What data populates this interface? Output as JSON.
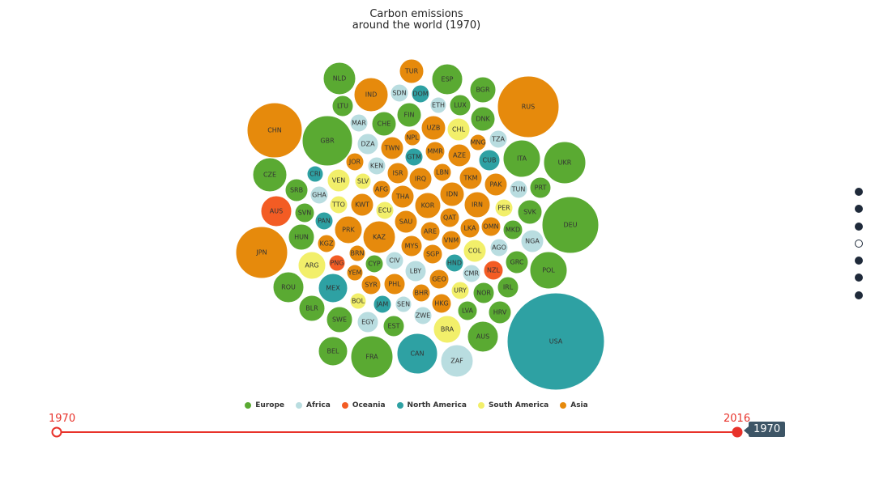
{
  "chart_data": {
    "type": "bubble",
    "title_line1": "Carbon emissions",
    "title_line2": "around the world (1970)",
    "colors": {
      "Europe": "#5aaa32",
      "Africa": "#b9dde0",
      "Oceania": "#f35c24",
      "North America": "#2ea1a3",
      "South America": "#f2ef6a",
      "Asia": "#e68a0c"
    },
    "legend": [
      "Europe",
      "Africa",
      "Oceania",
      "North America",
      "South America",
      "Asia"
    ],
    "bubbles": [
      {
        "code": "NLD",
        "region": "Europe",
        "c": [
          419,
          97
        ],
        "r": 20
      },
      {
        "code": "TUR",
        "region": "Asia",
        "c": [
          508,
          88
        ],
        "r": 15
      },
      {
        "code": "ESP",
        "region": "Europe",
        "c": [
          552,
          98
        ],
        "r": 19
      },
      {
        "code": "BGR",
        "region": "Europe",
        "c": [
          596,
          111
        ],
        "r": 16
      },
      {
        "code": "RUS",
        "region": "Asia",
        "c": [
          652,
          132
        ],
        "r": 38
      },
      {
        "code": "IND",
        "region": "Asia",
        "c": [
          458,
          117
        ],
        "r": 21
      },
      {
        "code": "SDN",
        "region": "Africa",
        "c": [
          493,
          115
        ],
        "r": 11
      },
      {
        "code": "DOM",
        "region": "North America",
        "c": [
          519,
          116
        ],
        "r": 11
      },
      {
        "code": "ETH",
        "region": "Africa",
        "c": [
          541,
          130
        ],
        "r": 10
      },
      {
        "code": "LUX",
        "region": "Europe",
        "c": [
          568,
          130
        ],
        "r": 13
      },
      {
        "code": "LTU",
        "region": "Europe",
        "c": [
          423,
          131
        ],
        "r": 13
      },
      {
        "code": "FIN",
        "region": "Europe",
        "c": [
          505,
          142
        ],
        "r": 15
      },
      {
        "code": "DNK",
        "region": "Europe",
        "c": [
          596,
          147
        ],
        "r": 15
      },
      {
        "code": "CHN",
        "region": "Asia",
        "c": [
          339,
          161
        ],
        "r": 34
      },
      {
        "code": "MAR",
        "region": "Africa",
        "c": [
          443,
          152
        ],
        "r": 11
      },
      {
        "code": "CHE",
        "region": "Europe",
        "c": [
          474,
          153
        ],
        "r": 15
      },
      {
        "code": "UZB",
        "region": "Asia",
        "c": [
          535,
          158
        ],
        "r": 15
      },
      {
        "code": "CHL",
        "region": "South America",
        "c": [
          566,
          160
        ],
        "r": 14
      },
      {
        "code": "GBR",
        "region": "Europe",
        "c": [
          404,
          174
        ],
        "r": 31
      },
      {
        "code": "NPL",
        "region": "Asia",
        "c": [
          509,
          170
        ],
        "r": 10
      },
      {
        "code": "MNG",
        "region": "Asia",
        "c": [
          590,
          176
        ],
        "r": 10
      },
      {
        "code": "TZA",
        "region": "Africa",
        "c": [
          615,
          172
        ],
        "r": 11
      },
      {
        "code": "DZA",
        "region": "Africa",
        "c": [
          454,
          178
        ],
        "r": 13
      },
      {
        "code": "TWN",
        "region": "Asia",
        "c": [
          484,
          183
        ],
        "r": 14
      },
      {
        "code": "MMR",
        "region": "Asia",
        "c": [
          537,
          187
        ],
        "r": 12
      },
      {
        "code": "AZE",
        "region": "Asia",
        "c": [
          567,
          192
        ],
        "r": 14
      },
      {
        "code": "ITA",
        "region": "Europe",
        "c": [
          644,
          196
        ],
        "r": 23
      },
      {
        "code": "UKR",
        "region": "Europe",
        "c": [
          697,
          201
        ],
        "r": 26
      },
      {
        "code": "GTM",
        "region": "North America",
        "c": [
          511,
          194
        ],
        "r": 11
      },
      {
        "code": "CUB",
        "region": "North America",
        "c": [
          604,
          198
        ],
        "r": 13
      },
      {
        "code": "JOR",
        "region": "Asia",
        "c": [
          438,
          200
        ],
        "r": 11
      },
      {
        "code": "KEN",
        "region": "Africa",
        "c": [
          465,
          205
        ],
        "r": 11
      },
      {
        "code": "CZE",
        "region": "Europe",
        "c": [
          333,
          216
        ],
        "r": 21
      },
      {
        "code": "CRI",
        "region": "North America",
        "c": [
          389,
          215
        ],
        "r": 10
      },
      {
        "code": "ISR",
        "region": "Asia",
        "c": [
          491,
          214
        ],
        "r": 13
      },
      {
        "code": "LBN",
        "region": "Asia",
        "c": [
          546,
          213
        ],
        "r": 11
      },
      {
        "code": "VEN",
        "region": "South America",
        "c": [
          418,
          223
        ],
        "r": 14
      },
      {
        "code": "SLV",
        "region": "South America",
        "c": [
          448,
          224
        ],
        "r": 10
      },
      {
        "code": "IRQ",
        "region": "Asia",
        "c": [
          519,
          221
        ],
        "r": 14
      },
      {
        "code": "TKM",
        "region": "Asia",
        "c": [
          581,
          220
        ],
        "r": 14
      },
      {
        "code": "PAK",
        "region": "Asia",
        "c": [
          612,
          228
        ],
        "r": 14
      },
      {
        "code": "SRB",
        "region": "Europe",
        "c": [
          366,
          235
        ],
        "r": 14
      },
      {
        "code": "AFG",
        "region": "Asia",
        "c": [
          471,
          234
        ],
        "r": 11
      },
      {
        "code": "TUN",
        "region": "Africa",
        "c": [
          640,
          234
        ],
        "r": 11
      },
      {
        "code": "PRT",
        "region": "Europe",
        "c": [
          667,
          232
        ],
        "r": 13
      },
      {
        "code": "GHA",
        "region": "Africa",
        "c": [
          394,
          241
        ],
        "r": 11
      },
      {
        "code": "THA",
        "region": "Asia",
        "c": [
          497,
          243
        ],
        "r": 14
      },
      {
        "code": "IDN",
        "region": "Asia",
        "c": [
          558,
          240
        ],
        "r": 15
      },
      {
        "code": "AUS",
        "region": "Oceania",
        "c": [
          341,
          261
        ],
        "r": 19
      },
      {
        "code": "TTO",
        "region": "South America",
        "c": [
          418,
          253
        ],
        "r": 11
      },
      {
        "code": "KWT",
        "region": "Asia",
        "c": [
          447,
          253
        ],
        "r": 14
      },
      {
        "code": "KOR",
        "region": "Asia",
        "c": [
          528,
          254
        ],
        "r": 16
      },
      {
        "code": "IRN",
        "region": "Asia",
        "c": [
          589,
          253
        ],
        "r": 16
      },
      {
        "code": "ECU",
        "region": "South America",
        "c": [
          475,
          260
        ],
        "r": 11
      },
      {
        "code": "PER",
        "region": "South America",
        "c": [
          622,
          257
        ],
        "r": 11
      },
      {
        "code": "SVK",
        "region": "Europe",
        "c": [
          654,
          262
        ],
        "r": 15
      },
      {
        "code": "DEU",
        "region": "Europe",
        "c": [
          704,
          278
        ],
        "r": 35
      },
      {
        "code": "SVN",
        "region": "Europe",
        "c": [
          376,
          263
        ],
        "r": 12
      },
      {
        "code": "QAT",
        "region": "Asia",
        "c": [
          555,
          269
        ],
        "r": 12
      },
      {
        "code": "PAN",
        "region": "North America",
        "c": [
          400,
          273
        ],
        "r": 11
      },
      {
        "code": "SAU",
        "region": "Asia",
        "c": [
          501,
          274
        ],
        "r": 14
      },
      {
        "code": "LKA",
        "region": "Asia",
        "c": [
          580,
          282
        ],
        "r": 12
      },
      {
        "code": "OMN",
        "region": "Asia",
        "c": [
          606,
          280
        ],
        "r": 12
      },
      {
        "code": "PRK",
        "region": "Asia",
        "c": [
          430,
          284
        ],
        "r": 17
      },
      {
        "code": "ARE",
        "region": "Asia",
        "c": [
          531,
          286
        ],
        "r": 12
      },
      {
        "code": "KAZ",
        "region": "Asia",
        "c": [
          468,
          293
        ],
        "r": 20
      },
      {
        "code": "MKD",
        "region": "Europe",
        "c": [
          633,
          284
        ],
        "r": 12
      },
      {
        "code": "HUN",
        "region": "Europe",
        "c": [
          372,
          293
        ],
        "r": 16
      },
      {
        "code": "NGA",
        "region": "Africa",
        "c": [
          657,
          298
        ],
        "r": 14
      },
      {
        "code": "VNM",
        "region": "Asia",
        "c": [
          557,
          297
        ],
        "r": 12
      },
      {
        "code": "KGZ",
        "region": "Asia",
        "c": [
          403,
          301
        ],
        "r": 11
      },
      {
        "code": "MYS",
        "region": "Asia",
        "c": [
          508,
          304
        ],
        "r": 13
      },
      {
        "code": "AGO",
        "region": "Africa",
        "c": [
          616,
          306
        ],
        "r": 11
      },
      {
        "code": "JPN",
        "region": "Asia",
        "c": [
          323,
          312
        ],
        "r": 32
      },
      {
        "code": "COL",
        "region": "South America",
        "c": [
          586,
          310
        ],
        "r": 14
      },
      {
        "code": "BRN",
        "region": "Asia",
        "c": [
          441,
          313
        ],
        "r": 10
      },
      {
        "code": "SGP",
        "region": "Asia",
        "c": [
          534,
          314
        ],
        "r": 12
      },
      {
        "code": "GRC",
        "region": "Europe",
        "c": [
          638,
          324
        ],
        "r": 14
      },
      {
        "code": "ARG",
        "region": "South America",
        "c": [
          385,
          328
        ],
        "r": 17
      },
      {
        "code": "PNG",
        "region": "Oceania",
        "c": [
          416,
          325
        ],
        "r": 10
      },
      {
        "code": "CYP",
        "region": "Europe",
        "c": [
          462,
          326
        ],
        "r": 11
      },
      {
        "code": "CIV",
        "region": "Africa",
        "c": [
          487,
          322
        ],
        "r": 11
      },
      {
        "code": "HND",
        "region": "North America",
        "c": [
          561,
          325
        ],
        "r": 11
      },
      {
        "code": "POL",
        "region": "Europe",
        "c": [
          677,
          334
        ],
        "r": 23
      },
      {
        "code": "NZL",
        "region": "Oceania",
        "c": [
          609,
          334
        ],
        "r": 12
      },
      {
        "code": "YEM",
        "region": "Asia",
        "c": [
          438,
          337
        ],
        "r": 10
      },
      {
        "code": "LBY",
        "region": "Africa",
        "c": [
          513,
          335
        ],
        "r": 13
      },
      {
        "code": "CMR",
        "region": "Africa",
        "c": [
          582,
          338
        ],
        "r": 11
      },
      {
        "code": "GEO",
        "region": "Asia",
        "c": [
          542,
          345
        ],
        "r": 12
      },
      {
        "code": "ROU",
        "region": "Europe",
        "c": [
          356,
          355
        ],
        "r": 19
      },
      {
        "code": "MEX",
        "region": "North America",
        "c": [
          411,
          356
        ],
        "r": 18
      },
      {
        "code": "SYR",
        "region": "Asia",
        "c": [
          458,
          352
        ],
        "r": 12
      },
      {
        "code": "PHL",
        "region": "Asia",
        "c": [
          487,
          351
        ],
        "r": 13
      },
      {
        "code": "IRL",
        "region": "Europe",
        "c": [
          627,
          355
        ],
        "r": 13
      },
      {
        "code": "URY",
        "region": "South America",
        "c": [
          568,
          359
        ],
        "r": 11
      },
      {
        "code": "BHR",
        "region": "Asia",
        "c": [
          520,
          362
        ],
        "r": 11
      },
      {
        "code": "NOR",
        "region": "Europe",
        "c": [
          597,
          362
        ],
        "r": 13
      },
      {
        "code": "BOL",
        "region": "South America",
        "c": [
          442,
          372
        ],
        "r": 10
      },
      {
        "code": "JAM",
        "region": "North America",
        "c": [
          472,
          376
        ],
        "r": 11
      },
      {
        "code": "SEN",
        "region": "Africa",
        "c": [
          498,
          376
        ],
        "r": 10
      },
      {
        "code": "HKG",
        "region": "Asia",
        "c": [
          545,
          375
        ],
        "r": 12
      },
      {
        "code": "BLR",
        "region": "Europe",
        "c": [
          385,
          381
        ],
        "r": 16
      },
      {
        "code": "LVA",
        "region": "Europe",
        "c": [
          577,
          384
        ],
        "r": 12
      },
      {
        "code": "HRV",
        "region": "Europe",
        "c": [
          617,
          386
        ],
        "r": 14
      },
      {
        "code": "ZWE",
        "region": "Africa",
        "c": [
          522,
          390
        ],
        "r": 11
      },
      {
        "code": "SWE",
        "region": "Europe",
        "c": [
          419,
          395
        ],
        "r": 16
      },
      {
        "code": "EGY",
        "region": "Africa",
        "c": [
          454,
          398
        ],
        "r": 13
      },
      {
        "code": "EST",
        "region": "Europe",
        "c": [
          486,
          403
        ],
        "r": 13
      },
      {
        "code": "BRA",
        "region": "South America",
        "c": [
          552,
          407
        ],
        "r": 17
      },
      {
        "code": "AUS",
        "region": "Europe",
        "c": [
          596,
          416
        ],
        "r": 19
      },
      {
        "code": "USA",
        "region": "North America",
        "c": [
          686,
          422
        ],
        "r": 60
      },
      {
        "code": "BEL",
        "region": "Europe",
        "c": [
          411,
          434
        ],
        "r": 18
      },
      {
        "code": "FRA",
        "region": "Europe",
        "c": [
          459,
          441
        ],
        "r": 26
      },
      {
        "code": "CAN",
        "region": "North America",
        "c": [
          515,
          437
        ],
        "r": 25
      },
      {
        "code": "ZAF",
        "region": "Africa",
        "c": [
          564,
          446
        ],
        "r": 20
      }
    ]
  },
  "timeline": {
    "start_label": "1970",
    "end_label": "2016",
    "current": "1970",
    "color": "#e8322a"
  },
  "dotnav": {
    "count": 7,
    "active_index": 3
  }
}
